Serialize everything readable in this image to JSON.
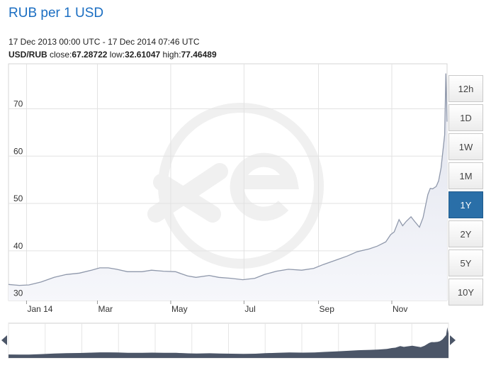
{
  "header": {
    "title": "RUB per 1 USD",
    "date_range": "17 Dec 2013 00:00 UTC - 17 Dec 2014 07:46 UTC",
    "pair": "USD/RUB",
    "close_label": "close:",
    "close_value": "67.28722",
    "low_label": "low:",
    "low_value": "32.61047",
    "high_label": "high:",
    "high_value": "77.46489"
  },
  "ranges": [
    {
      "label": "12h",
      "active": false
    },
    {
      "label": "1D",
      "active": false
    },
    {
      "label": "1W",
      "active": false
    },
    {
      "label": "1M",
      "active": false
    },
    {
      "label": "1Y",
      "active": true
    },
    {
      "label": "2Y",
      "active": false
    },
    {
      "label": "5Y",
      "active": false
    },
    {
      "label": "10Y",
      "active": false
    }
  ],
  "colors": {
    "line": "#8f98ab",
    "area_top": "#dfe2ec",
    "area_bottom": "#f6f7fb",
    "grid": "#e2e2e2",
    "active_button": "#2a6fa8",
    "navigator_fill": "#4c5668",
    "watermark": "#f0f0f0"
  },
  "chart_data": {
    "type": "area",
    "title": "RUB per 1 USD",
    "x_axis": {
      "type": "date",
      "range": [
        "2013-12-17",
        "2014-12-17"
      ],
      "tick_labels": [
        {
          "label": "Jan 14",
          "date": "2014-01-01"
        },
        {
          "label": "Mar",
          "date": "2014-03-01"
        },
        {
          "label": "May",
          "date": "2014-05-01"
        },
        {
          "label": "Jul",
          "date": "2014-07-01"
        },
        {
          "label": "Sep",
          "date": "2014-09-01"
        },
        {
          "label": "Nov",
          "date": "2014-11-01"
        }
      ]
    },
    "y_axis": {
      "range": [
        29.5,
        79.5
      ],
      "ticks": [
        30,
        40,
        50,
        60,
        70
      ]
    },
    "grid": true,
    "watermark_icon": "xe-logo-icon",
    "series": [
      {
        "name": "USD/RUB",
        "points": [
          [
            "2013-12-17",
            32.9
          ],
          [
            "2013-12-26",
            32.7
          ],
          [
            "2014-01-03",
            32.8
          ],
          [
            "2014-01-13",
            33.4
          ],
          [
            "2014-01-24",
            34.4
          ],
          [
            "2014-02-03",
            35.0
          ],
          [
            "2014-02-14",
            35.3
          ],
          [
            "2014-02-24",
            35.9
          ],
          [
            "2014-03-03",
            36.4
          ],
          [
            "2014-03-10",
            36.4
          ],
          [
            "2014-03-17",
            36.1
          ],
          [
            "2014-03-26",
            35.6
          ],
          [
            "2014-04-07",
            35.6
          ],
          [
            "2014-04-15",
            35.9
          ],
          [
            "2014-04-25",
            35.7
          ],
          [
            "2014-05-05",
            35.6
          ],
          [
            "2014-05-15",
            34.7
          ],
          [
            "2014-05-22",
            34.4
          ],
          [
            "2014-06-02",
            34.8
          ],
          [
            "2014-06-10",
            34.4
          ],
          [
            "2014-06-20",
            34.2
          ],
          [
            "2014-06-30",
            33.9
          ],
          [
            "2014-07-10",
            34.2
          ],
          [
            "2014-07-18",
            35.0
          ],
          [
            "2014-07-28",
            35.7
          ],
          [
            "2014-08-07",
            36.1
          ],
          [
            "2014-08-18",
            35.9
          ],
          [
            "2014-08-28",
            36.3
          ],
          [
            "2014-09-05",
            37.1
          ],
          [
            "2014-09-15",
            38.0
          ],
          [
            "2014-09-25",
            38.9
          ],
          [
            "2014-10-03",
            39.8
          ],
          [
            "2014-10-13",
            40.4
          ],
          [
            "2014-10-20",
            41.0
          ],
          [
            "2014-10-27",
            41.9
          ],
          [
            "2014-10-31",
            43.4
          ],
          [
            "2014-11-03",
            44.0
          ],
          [
            "2014-11-07",
            46.6
          ],
          [
            "2014-11-10",
            45.3
          ],
          [
            "2014-11-13",
            46.2
          ],
          [
            "2014-11-17",
            47.2
          ],
          [
            "2014-11-20",
            46.2
          ],
          [
            "2014-11-24",
            45.0
          ],
          [
            "2014-11-27",
            47.0
          ],
          [
            "2014-12-01",
            51.9
          ],
          [
            "2014-12-03",
            53.2
          ],
          [
            "2014-12-05",
            53.1
          ],
          [
            "2014-12-08",
            53.6
          ],
          [
            "2014-12-10",
            54.8
          ],
          [
            "2014-12-12",
            57.5
          ],
          [
            "2014-12-15",
            64.5
          ],
          [
            "2014-12-16",
            77.46
          ],
          [
            "2014-12-17",
            67.28
          ]
        ]
      }
    ]
  }
}
